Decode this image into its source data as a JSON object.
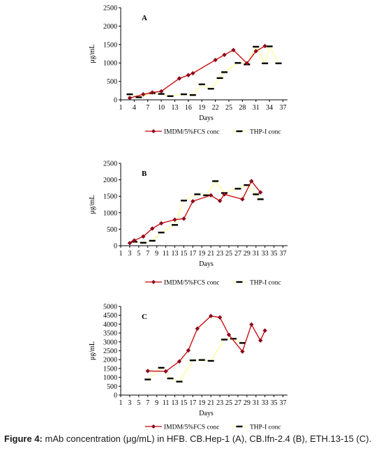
{
  "figure": {
    "caption_label": "Figure 4:",
    "caption_text": " mAb concentration (μg/mL) in HFB. CB.Hep-1 (A), CB.Ifn-2.4 (B), ETH.13-15 (C)."
  },
  "colors": {
    "series1": "#cc0000",
    "series1_marker": "#8b0a1e",
    "series2": "#ffff99",
    "series2_marker": "#000000"
  },
  "chart_data": [
    {
      "type": "line",
      "panel_label": "A",
      "xlabel": "Days",
      "ylabel": "μg/mL",
      "xlim": [
        1,
        38
      ],
      "ylim": [
        0,
        2500
      ],
      "xticks": [
        1,
        4,
        7,
        10,
        13,
        16,
        19,
        22,
        25,
        28,
        31,
        34,
        37
      ],
      "yticks": [
        0,
        500,
        1000,
        1500,
        2000,
        2500
      ],
      "legend_position": "bottom",
      "series": [
        {
          "name": "IMDM/5%FCS  conc",
          "x": [
            3,
            6,
            8,
            10,
            14,
            16,
            17,
            22,
            24,
            26,
            29,
            31,
            33
          ],
          "y": [
            50,
            150,
            200,
            230,
            580,
            670,
            720,
            1080,
            1220,
            1350,
            990,
            1320,
            1460
          ]
        },
        {
          "name": "THP-I  conc",
          "x": [
            3,
            5,
            8,
            10,
            12,
            15,
            17,
            19,
            21,
            23,
            24,
            27,
            29,
            31,
            33,
            34,
            36
          ],
          "y": [
            150,
            70,
            180,
            160,
            100,
            150,
            130,
            420,
            300,
            590,
            750,
            1000,
            960,
            1440,
            990,
            1450,
            990
          ]
        }
      ]
    },
    {
      "type": "line",
      "panel_label": "B",
      "xlabel": "Days",
      "ylabel": "μg/mL",
      "xlim": [
        1,
        38
      ],
      "ylim": [
        0,
        2500
      ],
      "xticks": [
        1,
        3,
        5,
        7,
        9,
        11,
        13,
        15,
        17,
        19,
        21,
        23,
        25,
        27,
        29,
        31,
        33,
        35,
        37
      ],
      "yticks": [
        0,
        500,
        1000,
        1500,
        2000,
        2500
      ],
      "legend_position": "bottom",
      "series": [
        {
          "name": "IMDM/5%FCS  conc",
          "x": [
            3,
            4,
            6,
            8,
            10,
            13,
            15,
            17,
            21,
            23,
            24,
            28,
            30,
            32
          ],
          "y": [
            80,
            160,
            280,
            520,
            680,
            790,
            820,
            1350,
            1530,
            1360,
            1560,
            1410,
            1960,
            1620
          ]
        },
        {
          "name": "THP-I  conc",
          "x": [
            4,
            6,
            8,
            10,
            13,
            15,
            18,
            20,
            22,
            24,
            27,
            29,
            31,
            32
          ],
          "y": [
            120,
            90,
            150,
            400,
            630,
            1370,
            1560,
            1530,
            1960,
            1600,
            1730,
            1840,
            1560,
            1410
          ]
        }
      ]
    },
    {
      "type": "line",
      "panel_label": "C",
      "xlabel": "Days",
      "ylabel": "μg/mL",
      "xlim": [
        1,
        38
      ],
      "ylim": [
        0,
        5000
      ],
      "xticks": [
        1,
        3,
        5,
        7,
        9,
        11,
        13,
        15,
        17,
        19,
        21,
        23,
        25,
        27,
        29,
        31,
        33,
        35,
        37
      ],
      "yticks": [
        0,
        500,
        1000,
        1500,
        2000,
        2500,
        3000,
        3500,
        4000,
        4500,
        5000
      ],
      "legend_position": "bottom",
      "series": [
        {
          "name": "IMDM/5%FCS  conc",
          "x": [
            7,
            11,
            14,
            16,
            18,
            21,
            23,
            25,
            28,
            30,
            32,
            33
          ],
          "y": [
            1360,
            1340,
            1900,
            2520,
            3750,
            4460,
            4380,
            3400,
            2460,
            3980,
            3080,
            3640
          ]
        },
        {
          "name": "THP-I  conc",
          "x": [
            7,
            10,
            12,
            14,
            17,
            19,
            21,
            24,
            26,
            28
          ],
          "y": [
            880,
            1540,
            940,
            760,
            1960,
            1980,
            1930,
            3130,
            3180,
            2940
          ]
        }
      ]
    }
  ]
}
